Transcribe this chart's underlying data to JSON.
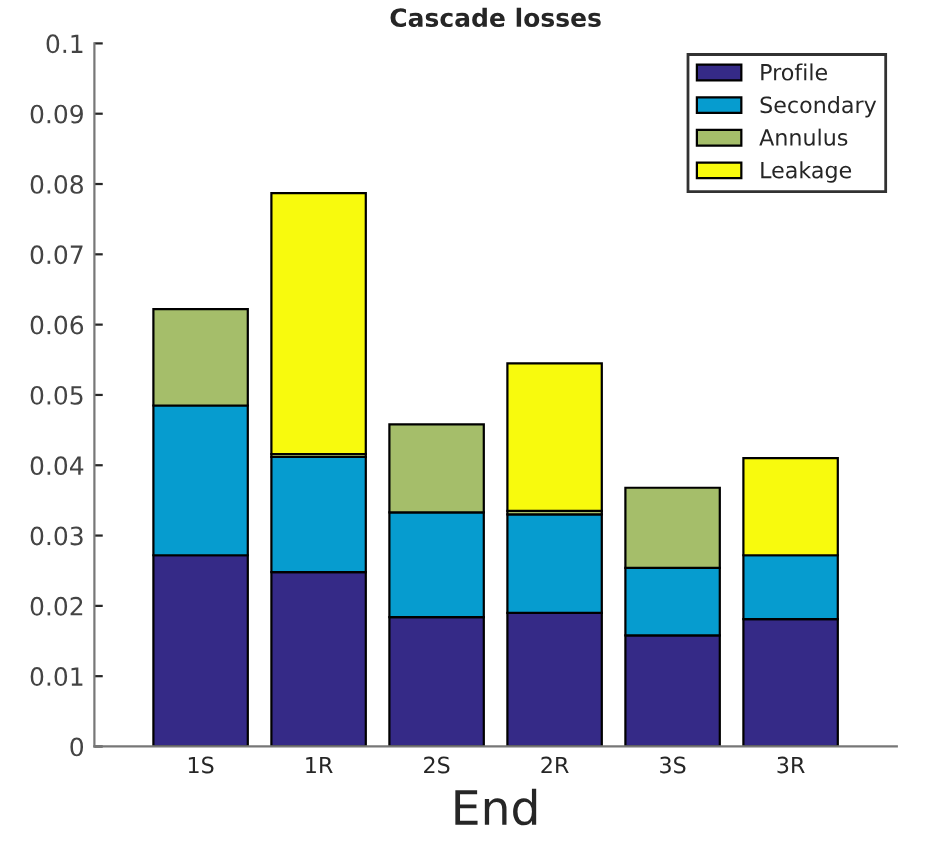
{
  "chart_data": {
    "type": "bar",
    "title": "Cascade losses",
    "xlabel": "End",
    "stacked": true,
    "categories": [
      "1S",
      "1R",
      "2S",
      "2R",
      "3S",
      "3R"
    ],
    "series": [
      {
        "name": "Profile",
        "color": "#352a87",
        "values": [
          0.0272,
          0.0248,
          0.0184,
          0.019,
          0.0158,
          0.0181
        ]
      },
      {
        "name": "Secondary",
        "color": "#069ccf",
        "values": [
          0.0213,
          0.0164,
          0.0149,
          0.014,
          0.0096,
          0.0091
        ]
      },
      {
        "name": "Annulus",
        "color": "#a5be6a",
        "values": [
          0.0137,
          0.0004,
          0.0125,
          0.0005,
          0.0114,
          null
        ]
      },
      {
        "name": "Leakage",
        "color": "#f8fa0d",
        "values": [
          null,
          0.0371,
          null,
          0.021,
          null,
          0.0138
        ]
      }
    ],
    "ylim": [
      0,
      0.1
    ],
    "yticks": [
      0,
      0.01,
      0.02,
      0.03,
      0.04,
      0.05,
      0.06,
      0.07,
      0.08,
      0.09,
      0.1
    ],
    "grid": false,
    "legend": "top right"
  }
}
